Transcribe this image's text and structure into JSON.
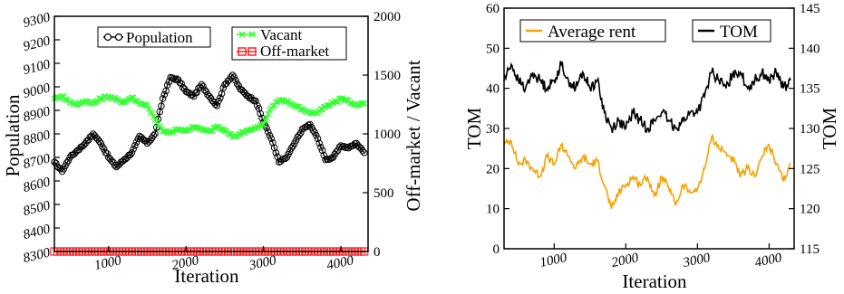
{
  "chart_data": [
    {
      "type": "line",
      "xlabel": "Iteration",
      "ylabel": "Population",
      "y2label": "Off-market / Vacant",
      "xlim": [
        300,
        4350
      ],
      "ylim": [
        8300,
        9300
      ],
      "y2lim": [
        0,
        2000
      ],
      "xticks": [
        "1000",
        "2000",
        "3000",
        "4000"
      ],
      "yticks": [
        "8300",
        "8400",
        "8500",
        "8600",
        "8700",
        "8800",
        "8900",
        "9000",
        "9100",
        "9200",
        "9300"
      ],
      "y2ticks": [
        "0",
        "500",
        "1000",
        "1500",
        "2000"
      ],
      "legend": [
        "Population",
        "Vacant",
        "Off-market"
      ],
      "series": [
        {
          "name": "Population",
          "axis": "left",
          "color": "#000000",
          "marker": "circle",
          "x": [
            300,
            400,
            500,
            600,
            700,
            800,
            900,
            1000,
            1100,
            1200,
            1300,
            1400,
            1500,
            1600,
            1700,
            1800,
            1900,
            2000,
            2100,
            2200,
            2300,
            2400,
            2500,
            2600,
            2700,
            2800,
            2900,
            3000,
            3100,
            3200,
            3300,
            3400,
            3500,
            3600,
            3700,
            3800,
            3900,
            4000,
            4100,
            4200,
            4300
          ],
          "y": [
            8680,
            8640,
            8700,
            8730,
            8760,
            8800,
            8760,
            8700,
            8660,
            8690,
            8720,
            8790,
            8760,
            8800,
            8950,
            9040,
            9030,
            8980,
            8960,
            9010,
            8960,
            8920,
            9010,
            9050,
            8990,
            8960,
            8940,
            8850,
            8780,
            8680,
            8700,
            8760,
            8820,
            8840,
            8780,
            8690,
            8700,
            8750,
            8740,
            8760,
            8720
          ]
        },
        {
          "name": "Vacant",
          "axis": "right",
          "color": "#33ff33",
          "marker": "x",
          "x": [
            300,
            400,
            500,
            600,
            700,
            800,
            900,
            1000,
            1100,
            1200,
            1300,
            1400,
            1500,
            1600,
            1700,
            1800,
            1900,
            2000,
            2100,
            2200,
            2300,
            2400,
            2500,
            2600,
            2700,
            2800,
            2900,
            3000,
            3100,
            3200,
            3300,
            3400,
            3500,
            3600,
            3700,
            3800,
            3900,
            4000,
            4100,
            4200,
            4300
          ],
          "y": [
            1300,
            1320,
            1270,
            1250,
            1280,
            1260,
            1300,
            1320,
            1290,
            1270,
            1310,
            1260,
            1240,
            1120,
            1020,
            1010,
            1040,
            1030,
            1060,
            1040,
            1020,
            1060,
            1030,
            980,
            1000,
            1030,
            1050,
            1080,
            1220,
            1290,
            1280,
            1240,
            1210,
            1180,
            1180,
            1230,
            1260,
            1300,
            1280,
            1240,
            1260
          ]
        },
        {
          "name": "Off-market",
          "axis": "right",
          "color": "#ff2222",
          "marker": "square",
          "x": [
            300,
            400,
            500,
            600,
            700,
            800,
            900,
            1000,
            1100,
            1200,
            1300,
            1400,
            1500,
            1600,
            1700,
            1800,
            1900,
            2000,
            2100,
            2200,
            2300,
            2400,
            2500,
            2600,
            2700,
            2800,
            2900,
            3000,
            3100,
            3200,
            3300,
            3400,
            3500,
            3600,
            3700,
            3800,
            3900,
            4000,
            4100,
            4200,
            4300
          ],
          "y": [
            0,
            0,
            0,
            0,
            0,
            0,
            0,
            0,
            0,
            0,
            0,
            0,
            0,
            0,
            0,
            0,
            0,
            0,
            0,
            0,
            0,
            0,
            0,
            0,
            0,
            0,
            0,
            0,
            0,
            0,
            0,
            0,
            0,
            0,
            0,
            0,
            0,
            0,
            0,
            0,
            0
          ]
        }
      ]
    },
    {
      "type": "line",
      "xlabel": "Iteration",
      "ylabel": "TOM",
      "y2label": "TOM",
      "xlim": [
        300,
        4350
      ],
      "ylim": [
        0,
        60
      ],
      "y2lim": [
        115,
        145
      ],
      "xticks": [
        "1000",
        "2000",
        "3000",
        "4000"
      ],
      "yticks": [
        "0",
        "10",
        "20",
        "30",
        "40",
        "50",
        "60"
      ],
      "y2ticks": [
        "115",
        "120",
        "125",
        "130",
        "135",
        "140",
        "145"
      ],
      "legend": [
        "Average rent",
        "TOM"
      ],
      "series": [
        {
          "name": "Average rent",
          "axis": "left",
          "color": "#f5a300",
          "x": [
            300,
            400,
            500,
            600,
            700,
            800,
            900,
            1000,
            1100,
            1200,
            1300,
            1400,
            1500,
            1600,
            1700,
            1800,
            1900,
            2000,
            2100,
            2200,
            2300,
            2400,
            2500,
            2600,
            2700,
            2800,
            2900,
            3000,
            3100,
            3200,
            3300,
            3400,
            3500,
            3600,
            3700,
            3800,
            3900,
            4000,
            4100,
            4200,
            4300
          ],
          "y": [
            26,
            27,
            21,
            22,
            20,
            18,
            23,
            21,
            26,
            23,
            20,
            23,
            21,
            22,
            16,
            10,
            14,
            16,
            18,
            16,
            18,
            13,
            18,
            15,
            11,
            16,
            14,
            15,
            20,
            28,
            25,
            24,
            22,
            18,
            20,
            18,
            23,
            26,
            21,
            17,
            21
          ]
        },
        {
          "name": "TOM",
          "axis": "right",
          "color": "#000000",
          "x": [
            300,
            400,
            500,
            600,
            700,
            800,
            900,
            1000,
            1100,
            1200,
            1300,
            1400,
            1500,
            1600,
            1700,
            1800,
            1900,
            2000,
            2100,
            2200,
            2300,
            2400,
            2500,
            2600,
            2700,
            2800,
            2900,
            3000,
            3100,
            3200,
            3300,
            3400,
            3500,
            3600,
            3700,
            3800,
            3900,
            4000,
            4100,
            4200,
            4300
          ],
          "y": [
            136,
            138,
            136,
            135,
            137,
            136,
            135,
            136,
            138,
            136,
            135,
            137,
            135,
            136,
            132,
            130,
            131,
            130,
            132,
            131,
            130,
            131,
            132,
            131,
            130,
            131,
            132,
            132,
            134,
            137,
            136,
            135,
            137,
            137,
            135,
            136,
            137,
            136,
            137,
            135,
            136
          ]
        }
      ]
    }
  ]
}
